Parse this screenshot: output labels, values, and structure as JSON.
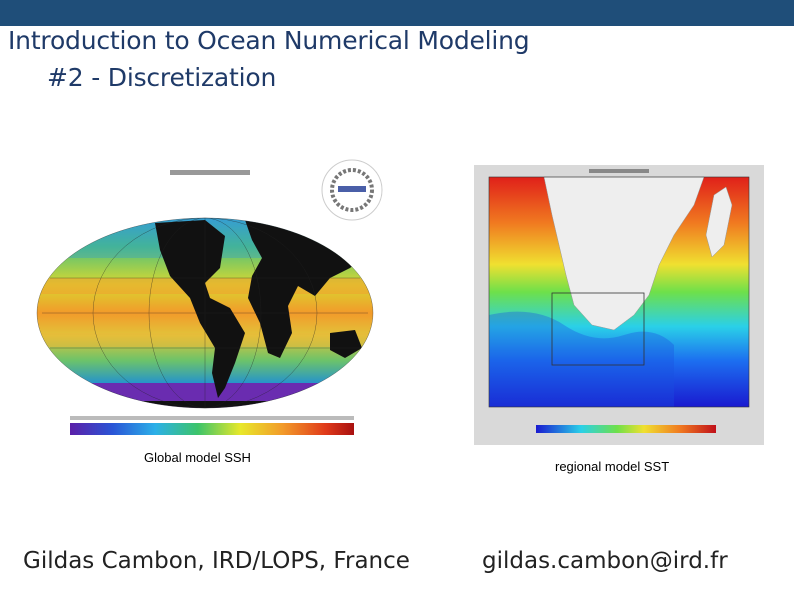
{
  "slide": {
    "title_line1": "Introduction to Ocean Numerical Modeling",
    "title_line2": "#2 - Discretization",
    "caption_left": "Global  model SSH",
    "caption_right": "regional model SST",
    "footer_left": "Gildas Cambon, IRD/LOPS, France",
    "footer_right": "gildas.cambon@ird.fr"
  },
  "colors": {
    "top_bar": "#1f4e79",
    "title_text": "#1f3a68"
  }
}
